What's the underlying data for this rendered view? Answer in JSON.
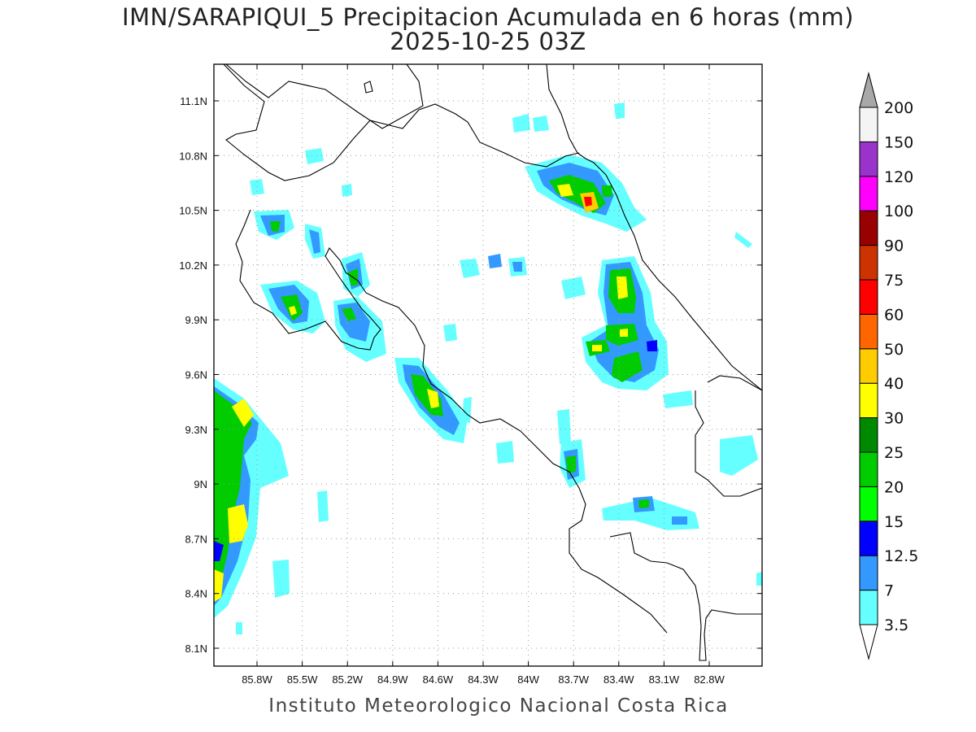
{
  "title": {
    "line1": "IMN/SARAPIQUI_5 Precipitacion Acumulada en 6 horas (mm)",
    "line2": "2025-10-25 03Z"
  },
  "footer": "Instituto Meteorologico Nacional Costa Rica",
  "map": {
    "lon_range": [
      -86.0,
      -82.6
    ],
    "lat_range": [
      8.0,
      11.3
    ],
    "lon_ticks": [
      "85.8W",
      "85.5W",
      "85.2W",
      "84.9W",
      "84.6W",
      "84.3W",
      "84W",
      "83.7W",
      "83.4W",
      "83.1W",
      "82.8W"
    ],
    "lat_ticks": [
      "11.1N",
      "10.8N",
      "10.5N",
      "10.2N",
      "9.9N",
      "9.6N",
      "9.3N",
      "9N",
      "8.7N",
      "8.4N",
      "8.1N"
    ],
    "grid": "dotted"
  },
  "colorbar": {
    "labels": [
      "3.5",
      "7",
      "12.5",
      "15",
      "20",
      "25",
      "30",
      "40",
      "50",
      "60",
      "75",
      "90",
      "100",
      "120",
      "150",
      "200"
    ],
    "colors": [
      "#ffffff",
      "#66ffff",
      "#3399ff",
      "#0000ff",
      "#00ff00",
      "#00cc00",
      "#008800",
      "#ffff00",
      "#ffcc00",
      "#ff6600",
      "#ff0000",
      "#cc3300",
      "#990000",
      "#ff00ff",
      "#9933cc",
      "#f4f4f4"
    ],
    "over_color": "#a8a8a8"
  }
}
